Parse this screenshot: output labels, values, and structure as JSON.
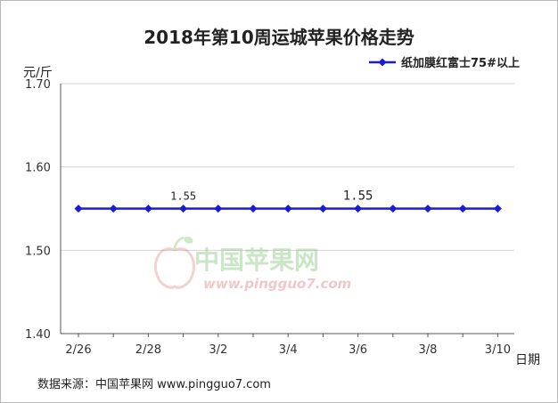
{
  "chart_data": {
    "type": "line",
    "title": "2018年第10周运城苹果价格走势",
    "ylabel": "元/斤",
    "xlabel": "日期",
    "ylim": [
      1.4,
      1.7
    ],
    "yticks": [
      "1.70",
      "1.60",
      "1.50",
      "1.40"
    ],
    "ytick_values": [
      1.7,
      1.6,
      1.5,
      1.4
    ],
    "xtick_labels": [
      "2/26",
      "2/28",
      "3/2",
      "3/4",
      "3/6",
      "3/8",
      "3/10"
    ],
    "xtick_indices": [
      0,
      2,
      4,
      6,
      8,
      10,
      12
    ],
    "x": [
      "2/26",
      "2/27",
      "2/28",
      "3/1",
      "3/2",
      "3/3",
      "3/4",
      "3/5",
      "3/6",
      "3/7",
      "3/8",
      "3/9",
      "3/10"
    ],
    "series": [
      {
        "name": "纸加膜红富士75#以上",
        "color": "#1a1adc",
        "values": [
          1.55,
          1.55,
          1.55,
          1.55,
          1.55,
          1.55,
          1.55,
          1.55,
          1.55,
          1.55,
          1.55,
          1.55,
          1.55
        ]
      }
    ],
    "data_labels": [
      {
        "index": 3,
        "text": "1.55"
      },
      {
        "index": 8,
        "text": "1.55"
      }
    ],
    "grid": true,
    "legend": "top-right"
  },
  "watermark": {
    "name": "中国苹果网",
    "url": "www.pingguo7.com"
  },
  "source": "数据来源：中国苹果网 www.pingguo7.com"
}
